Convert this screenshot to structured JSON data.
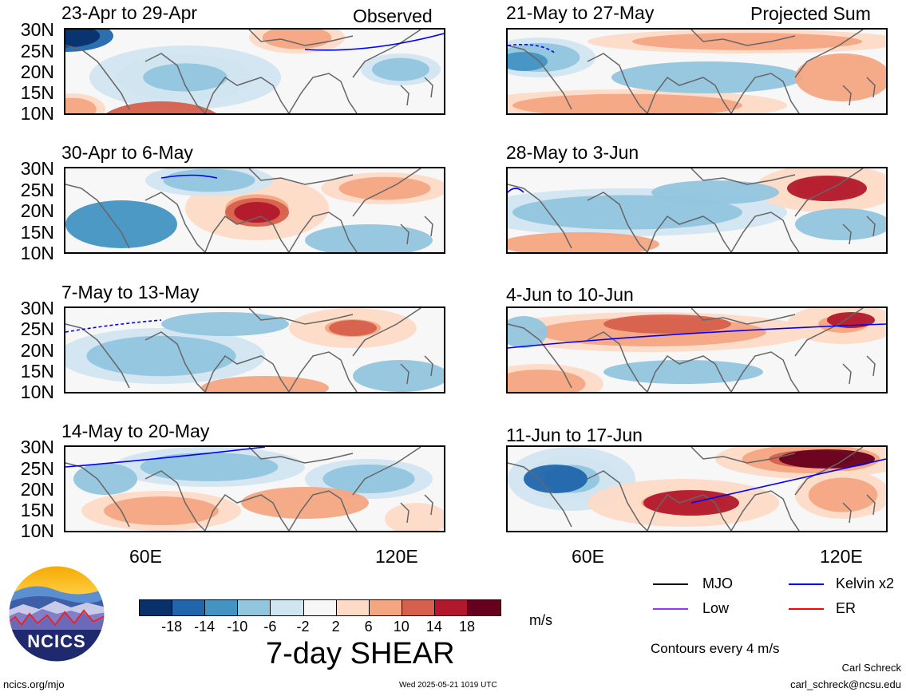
{
  "header": {
    "left_tag": "Observed",
    "right_tag": "Projected Sum"
  },
  "panels": [
    {
      "title": "23-Apr to 29-Apr"
    },
    {
      "title": "30-Apr to 6-May"
    },
    {
      "title": "7-May to 13-May"
    },
    {
      "title": "14-May to 20-May"
    },
    {
      "title": "21-May to 27-May"
    },
    {
      "title": "28-May to 3-Jun"
    },
    {
      "title": "4-Jun to 10-Jun"
    },
    {
      "title": "11-Jun to 17-Jun"
    }
  ],
  "axis": {
    "lat_labels": [
      "30N",
      "25N",
      "20N",
      "15N",
      "10N"
    ],
    "lon_labels": [
      "60E",
      "120E"
    ]
  },
  "colorbar": {
    "labels": [
      "-18",
      "-14",
      "-10",
      "-6",
      "-2",
      "2",
      "6",
      "10",
      "14",
      "18"
    ],
    "colors": [
      "#08306b",
      "#2166ac",
      "#4393c3",
      "#92c5de",
      "#d1e5f0",
      "#f7f7f7",
      "#fddbc7",
      "#f4a582",
      "#d6604d",
      "#b2182b",
      "#67001f"
    ],
    "unit": "m/s",
    "title": "7-day SHEAR"
  },
  "legend": {
    "items": [
      {
        "label": "MJO",
        "color": "#000000"
      },
      {
        "label": "Kelvin x2",
        "color": "#0000ff"
      },
      {
        "label": "Low",
        "color": "#9933ff"
      },
      {
        "label": "ER",
        "color": "#ff0000"
      }
    ],
    "contour_note": "Contours every 4 m/s"
  },
  "footer": {
    "logo_text": "NCICS",
    "url": "ncics.org/mjo",
    "timestamp": "Wed 2025-05-21 1019 UTC",
    "author": "Carl Schreck",
    "email": "carl_schreck@ncsu.edu"
  }
}
